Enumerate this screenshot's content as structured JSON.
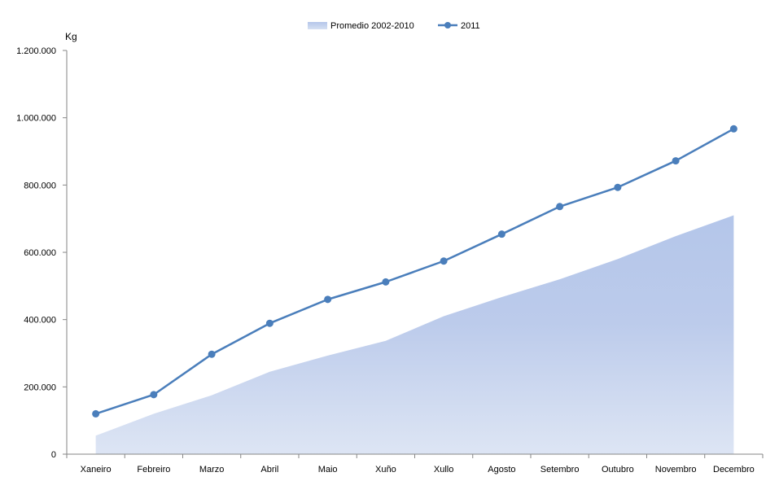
{
  "chart_data": {
    "type": "area",
    "ylabel": "Kg",
    "ylim": [
      0,
      1200000
    ],
    "yticks": [
      0,
      200000,
      400000,
      600000,
      800000,
      1000000,
      1200000
    ],
    "ytick_labels": [
      "0",
      "200.000",
      "400.000",
      "600.000",
      "800.000",
      "1.000.000",
      "1.200.000"
    ],
    "categories": [
      "Xaneiro",
      "Febreiro",
      "Marzo",
      "Abril",
      "Maio",
      "Xuño",
      "Xullo",
      "Agosto",
      "Setembro",
      "Outubro",
      "Novembro",
      "Decembro"
    ],
    "legend_position": "top-center",
    "grid": false,
    "series": [
      {
        "name": "Promedio 2002-2010",
        "type": "area",
        "color": "#b4c6ea",
        "values": [
          55000,
          120000,
          175000,
          245000,
          293000,
          337000,
          410000,
          467000,
          520000,
          580000,
          648000,
          710000
        ]
      },
      {
        "name": "2011",
        "type": "line",
        "color": "#4a7ebb",
        "values": [
          120000,
          177000,
          297000,
          389000,
          460000,
          512000,
          574000,
          654000,
          736000,
          793000,
          872000,
          967000
        ]
      }
    ]
  }
}
